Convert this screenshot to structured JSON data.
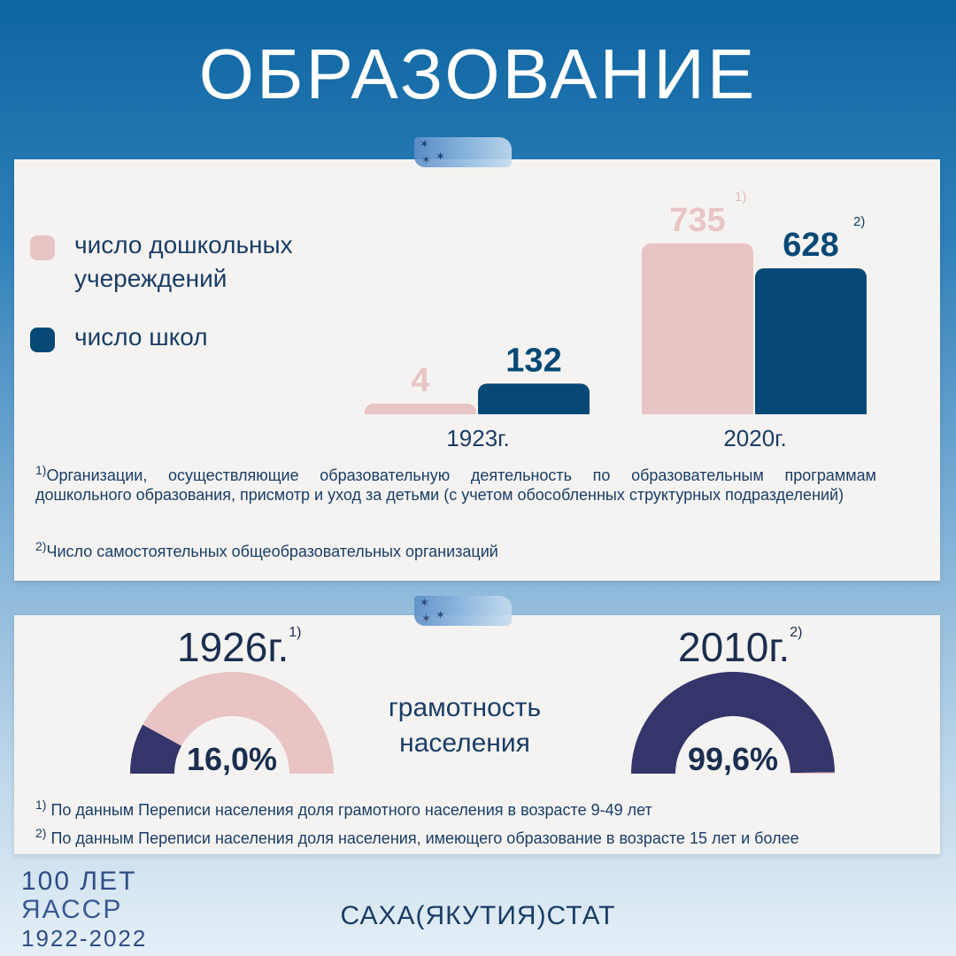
{
  "title": "ОБРАЗОВАНИЕ",
  "colors": {
    "preschool": "#e9c4c4",
    "schools": "#064976",
    "literate": "#34356a",
    "remaining": "#e9c4c4"
  },
  "legend": {
    "preschool": "число дошкольных учереждений",
    "schools": "число школ"
  },
  "chart_data": [
    {
      "type": "bar",
      "categories": [
        "1923г.",
        "2020г."
      ],
      "series": [
        {
          "name": "число дошкольных учереждений",
          "values": [
            4,
            735
          ],
          "footnote_marks": [
            "",
            "1)"
          ]
        },
        {
          "name": "число школ",
          "values": [
            132,
            628
          ],
          "footnote_marks": [
            "",
            "2)"
          ]
        }
      ],
      "value_labels": [
        [
          "4",
          "735"
        ],
        [
          "132",
          "628"
        ]
      ],
      "ylim": [
        0,
        800
      ],
      "legend_position": "left"
    },
    {
      "type": "pie",
      "variant": "half-donut",
      "title": "грамотность населения",
      "charts": [
        {
          "year": "1926г.",
          "mark": "1)",
          "value": 16.0,
          "label": "16,0%"
        },
        {
          "year": "2010г.",
          "mark": "2)",
          "value": 99.6,
          "label": "99,6%"
        }
      ]
    }
  ],
  "footnotes_top": [
    {
      "mark": "1)",
      "text": "Организации, осуществляющие образовательную деятельность по образовательным программам дошкольного образования, присмотр и уход за детьми (с учетом обособленных структурных подразделений)"
    },
    {
      "mark": "2)",
      "text": "Число самостоятельных общеобразовательных организаций"
    }
  ],
  "literacy_label_line1": "грамотность",
  "literacy_label_line2": "населения",
  "footnotes_bottom": [
    {
      "mark": "1)",
      "text": "По данным Переписи населения доля грамотного населения в возрасте 9-49 лет"
    },
    {
      "mark": "2)",
      "text": "По данным Переписи населения доля населения, имеющего образование в возрасте 15 лет и более"
    }
  ],
  "logo": {
    "line1": "100 ЛЕТ",
    "line2": "ЯАССР",
    "line3": "1922-2022"
  },
  "agency": "САХА(ЯКУТИЯ)СТАТ"
}
